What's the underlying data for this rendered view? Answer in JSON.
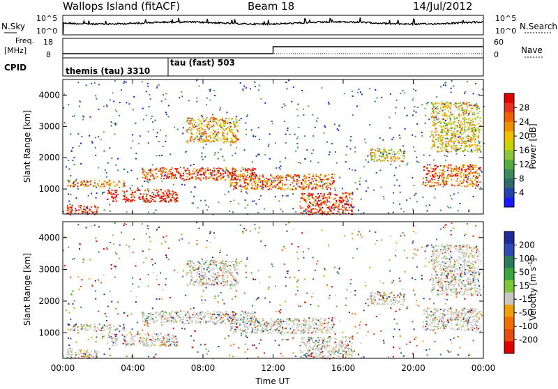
{
  "header": {
    "radar": "Wallops Island (fitACF)",
    "beam": "Beam 18",
    "date": "14/Jul/2012"
  },
  "noise_panel": {
    "left_label": "N.Sky",
    "right_label": "N.Search",
    "left_ticks": [
      "10^5",
      "10^0"
    ],
    "right_ticks": [
      "10^5",
      "10^0"
    ]
  },
  "freq_panel": {
    "left_label_1": "Freq.",
    "left_label_2": "[MHz]",
    "right_label": "Nave",
    "left_ticks": [
      "18",
      "8"
    ],
    "right_ticks": [
      "60",
      "0"
    ]
  },
  "cpid_panel": {
    "label": "CPID",
    "modes": [
      "themis (tau) 3310",
      "tau (fast) 503"
    ]
  },
  "x_axis": {
    "label": "Time UT",
    "ticks": [
      "00:00",
      "04:00",
      "08:00",
      "12:00",
      "16:00",
      "20:00",
      "00:00"
    ]
  },
  "power_panel": {
    "ylabel": "Slant Range [km]",
    "yticks": [
      "4000",
      "3000",
      "2000",
      "1000"
    ],
    "colorbar_label": "Power [dB]",
    "colorbar_ticks": [
      "28",
      "24",
      "20",
      "16",
      "12",
      "8",
      "4"
    ],
    "colors": [
      "#1a1aff",
      "#2244aa",
      "#2f6b6b",
      "#3a8a5a",
      "#55aa44",
      "#8cc63f",
      "#c8d400",
      "#f0c000",
      "#f09000",
      "#f06000",
      "#e83020",
      "#e00000"
    ]
  },
  "velocity_panel": {
    "ylabel": "Slant Range [km]",
    "yticks": [
      "4000",
      "3000",
      "2000",
      "1000"
    ],
    "colorbar_label": "Velocity [m s",
    "colorbar_label_sup": "-1",
    "colorbar_label_end": "]",
    "colorbar_ticks": [
      "200",
      "100",
      "50",
      "15",
      "-15",
      "-50",
      "-100",
      "-200"
    ],
    "colors": [
      "#1e2a9a",
      "#2f4ab0",
      "#2a7a5a",
      "#3aa53a",
      "#7cc63a",
      "#c8c8c0",
      "#f0a000",
      "#f07000",
      "#e84a10",
      "#e00000"
    ]
  },
  "chart_data": {
    "type": "heatmap",
    "title": "Wallops Island (fitACF)  Beam 18  14/Jul/2012",
    "xlabel": "Time UT",
    "ylabel": "Slant Range [km]",
    "xlim": [
      "00:00",
      "24:00"
    ],
    "ylim": [
      200,
      4500
    ],
    "freq_mhz": [
      {
        "from": "00:00",
        "to": "12:00",
        "value": 10.5
      },
      {
        "from": "12:00",
        "to": "24:00",
        "value": 15.5
      }
    ],
    "cpid": [
      {
        "from": "00:00",
        "to": "06:00",
        "name": "themis (tau) 3310"
      },
      {
        "from": "06:00",
        "to": "24:00",
        "name": "tau (fast) 503"
      }
    ],
    "power_db_range": [
      0,
      30
    ],
    "velocity_range": [
      -200,
      200
    ],
    "echo_bands": [
      {
        "t_start": 0.2,
        "t_end": 3.5,
        "r_start": 1100,
        "r_end": 1300,
        "power_db": 22
      },
      {
        "t_start": 0.2,
        "t_end": 2.0,
        "r_start": 200,
        "r_end": 500,
        "power_db": 26
      },
      {
        "t_start": 2.5,
        "t_end": 6.5,
        "r_start": 600,
        "r_end": 1000,
        "power_db": 28
      },
      {
        "t_start": 4.5,
        "t_end": 11.0,
        "r_start": 1300,
        "r_end": 1700,
        "power_db": 26
      },
      {
        "t_start": 7.0,
        "t_end": 10.0,
        "r_start": 2500,
        "r_end": 3300,
        "power_db": 20
      },
      {
        "t_start": 9.5,
        "t_end": 15.5,
        "r_start": 1000,
        "r_end": 1500,
        "power_db": 24
      },
      {
        "t_start": 13.5,
        "t_end": 16.5,
        "r_start": 200,
        "r_end": 900,
        "power_db": 26
      },
      {
        "t_start": 17.5,
        "t_end": 19.5,
        "r_start": 1900,
        "r_end": 2300,
        "power_db": 18
      },
      {
        "t_start": 20.5,
        "t_end": 23.8,
        "r_start": 1100,
        "r_end": 1800,
        "power_db": 24
      },
      {
        "t_start": 21.0,
        "t_end": 23.8,
        "r_start": 2200,
        "r_end": 3800,
        "power_db": 18
      }
    ]
  }
}
